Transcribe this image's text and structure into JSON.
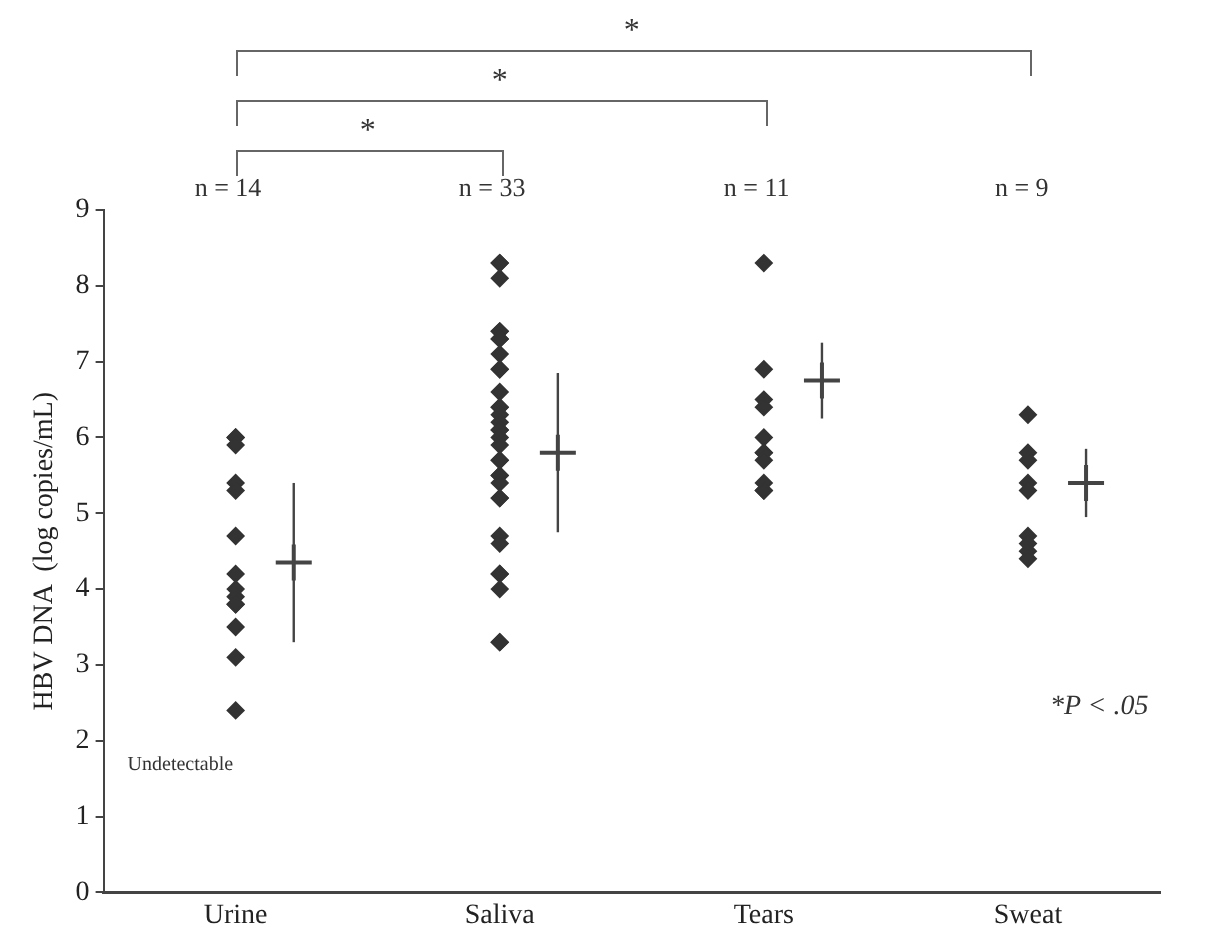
{
  "chart_data": {
    "type": "scatter",
    "ylabel": "HBV DNA  (log copies/mL)",
    "categories": [
      "Urine",
      "Saliva",
      "Tears",
      "Sweat"
    ],
    "ylim": [
      0,
      9
    ],
    "yticks": [
      0,
      1,
      2,
      3,
      4,
      5,
      6,
      7,
      8,
      9
    ],
    "grid": false,
    "series": [
      {
        "color": "#333333",
        "marker": "diamond",
        "x": [
          "Urine",
          "Urine",
          "Urine",
          "Urine",
          "Urine",
          "Urine",
          "Urine",
          "Urine",
          "Urine",
          "Urine",
          "Urine",
          "Urine",
          "Urine",
          "Urine",
          "Saliva",
          "Saliva",
          "Saliva",
          "Saliva",
          "Saliva",
          "Saliva",
          "Saliva",
          "Saliva",
          "Saliva",
          "Saliva",
          "Saliva",
          "Saliva",
          "Saliva",
          "Saliva",
          "Saliva",
          "Saliva",
          "Saliva",
          "Saliva",
          "Saliva",
          "Saliva",
          "Saliva",
          "Saliva",
          "Saliva",
          "Saliva",
          "Saliva",
          "Saliva",
          "Saliva",
          "Saliva",
          "Saliva",
          "Saliva",
          "Saliva",
          "Saliva",
          "Saliva",
          "Tears",
          "Tears",
          "Tears",
          "Tears",
          "Tears",
          "Tears",
          "Tears",
          "Tears",
          "Tears",
          "Tears",
          "Tears",
          "Sweat",
          "Sweat",
          "Sweat",
          "Sweat",
          "Sweat",
          "Sweat",
          "Sweat",
          "Sweat",
          "Sweat"
        ],
        "values": [
          6.0,
          6.0,
          5.9,
          5.4,
          5.3,
          4.7,
          4.2,
          4.0,
          3.9,
          3.8,
          3.8,
          3.5,
          3.1,
          2.4,
          8.3,
          8.3,
          8.1,
          7.4,
          7.4,
          7.3,
          7.3,
          7.1,
          6.9,
          6.9,
          6.6,
          6.4,
          6.4,
          6.3,
          6.2,
          6.1,
          6.1,
          6.0,
          5.9,
          5.7,
          5.7,
          5.5,
          5.5,
          5.4,
          5.2,
          5.2,
          4.7,
          4.6,
          4.2,
          4.2,
          4.0,
          3.3,
          3.3,
          8.3,
          6.9,
          6.5,
          6.4,
          6.0,
          5.8,
          5.8,
          5.7,
          5.4,
          5.3,
          5.3,
          6.3,
          5.8,
          5.7,
          5.4,
          5.3,
          4.7,
          4.6,
          4.5,
          4.4
        ]
      },
      {
        "color": "#444444",
        "marker": "cross",
        "x": [
          "Urine",
          "Saliva",
          "Tears",
          "Sweat"
        ],
        "values": [
          4.35,
          5.8,
          6.75,
          5.4
        ],
        "errors": [
          1.05,
          1.05,
          0.5,
          0.45
        ]
      }
    ],
    "annotations": [
      "*",
      "*",
      "*",
      "n = 14",
      "n = 33",
      "n = 11",
      "n = 9",
      "Undetectable",
      "*P < .05"
    ]
  }
}
